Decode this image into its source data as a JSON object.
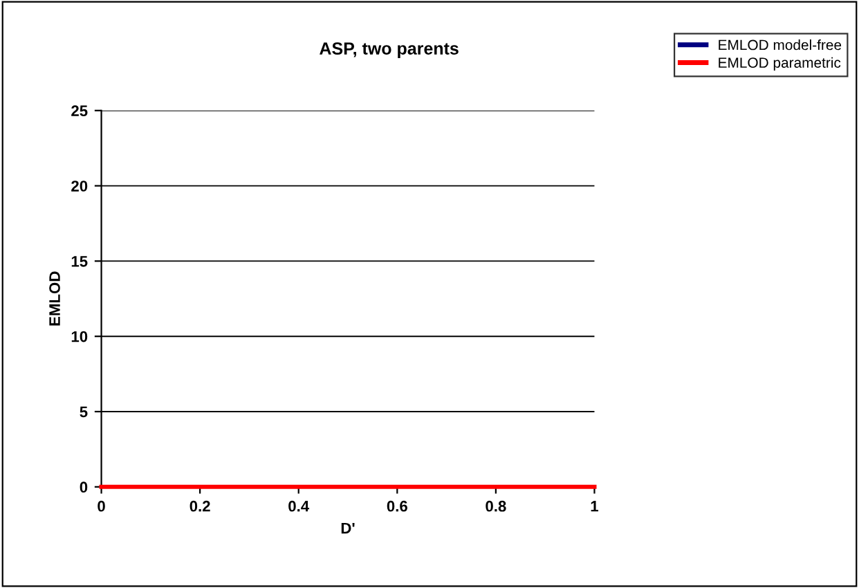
{
  "chart_data": {
    "type": "line",
    "title": "ASP, two parents",
    "xlabel": "D'",
    "ylabel": "EMLOD",
    "x": [
      0,
      1
    ],
    "series": [
      {
        "name": "EMLOD model-free",
        "color": "#000080",
        "values": [
          null,
          null
        ]
      },
      {
        "name": "EMLOD parametric",
        "color": "#ff0000",
        "values": [
          0,
          0
        ]
      }
    ],
    "xlim": [
      0,
      1
    ],
    "xticks": [
      0,
      0.2,
      0.4,
      0.6,
      0.8,
      1
    ],
    "ylim": [
      0,
      25
    ],
    "yticks": [
      0,
      5,
      10,
      15,
      20,
      25
    ],
    "grid": "y",
    "legend": "top right",
    "marker": "none",
    "line_style": "solid"
  }
}
